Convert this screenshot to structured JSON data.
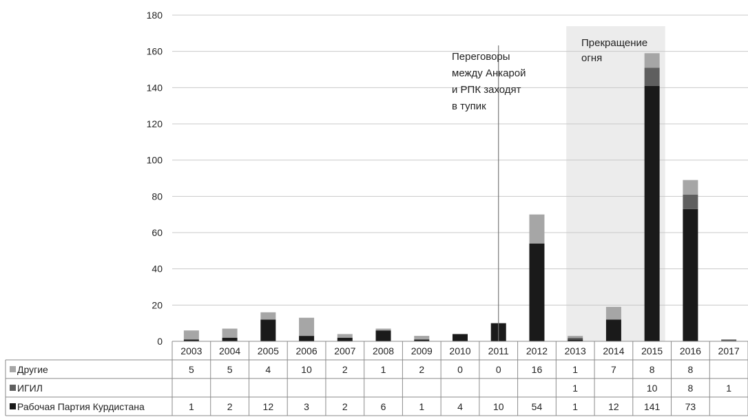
{
  "chart_data": {
    "type": "bar",
    "stacked": true,
    "categories": [
      "2003",
      "2004",
      "2005",
      "2006",
      "2007",
      "2008",
      "2009",
      "2010",
      "2011",
      "2012",
      "2013",
      "2014",
      "2015",
      "2016",
      "2017"
    ],
    "series": [
      {
        "name": "Другие",
        "color": "#a6a6a6",
        "values": [
          5,
          5,
          4,
          10,
          2,
          1,
          2,
          0,
          0,
          16,
          1,
          7,
          8,
          8,
          null
        ],
        "labels": [
          "5",
          "5",
          "4",
          "10",
          "2",
          "1",
          "2",
          "0",
          "0",
          "16",
          "1",
          "7",
          "8",
          "8",
          ""
        ]
      },
      {
        "name": "ИГИЛ",
        "color": "#5f5f5f",
        "values": [
          null,
          null,
          null,
          null,
          null,
          null,
          null,
          null,
          null,
          null,
          1,
          null,
          10,
          8,
          1
        ],
        "labels": [
          "",
          "",
          "",
          "",
          "",
          "",
          "",
          "",
          "",
          "",
          "1",
          "",
          "10",
          "8",
          "1"
        ]
      },
      {
        "name": "Рабочая Партия Курдистана",
        "color": "#1a1a1a",
        "values": [
          1,
          2,
          12,
          3,
          2,
          6,
          1,
          4,
          10,
          54,
          1,
          12,
          141,
          73,
          null
        ],
        "labels": [
          "1",
          "2",
          "12",
          "3",
          "2",
          "6",
          "1",
          "4",
          "10",
          "54",
          "1",
          "12",
          "141",
          "73",
          ""
        ]
      }
    ],
    "ylim": [
      0,
      180
    ],
    "yticks": [
      0,
      20,
      40,
      60,
      80,
      100,
      120,
      140,
      160,
      180
    ],
    "grid": true,
    "legend": "data-table-left",
    "annotations": [
      {
        "text_lines": [
          "Переговоры",
          "между Анкарой",
          "и РПК заходят",
          "в тупик"
        ],
        "at_category": "2011",
        "kind": "vertical-line"
      },
      {
        "text_lines": [
          "Прекращение",
          "огня"
        ],
        "from_category": "2013",
        "to_category": "2015",
        "kind": "shaded-band"
      }
    ]
  }
}
